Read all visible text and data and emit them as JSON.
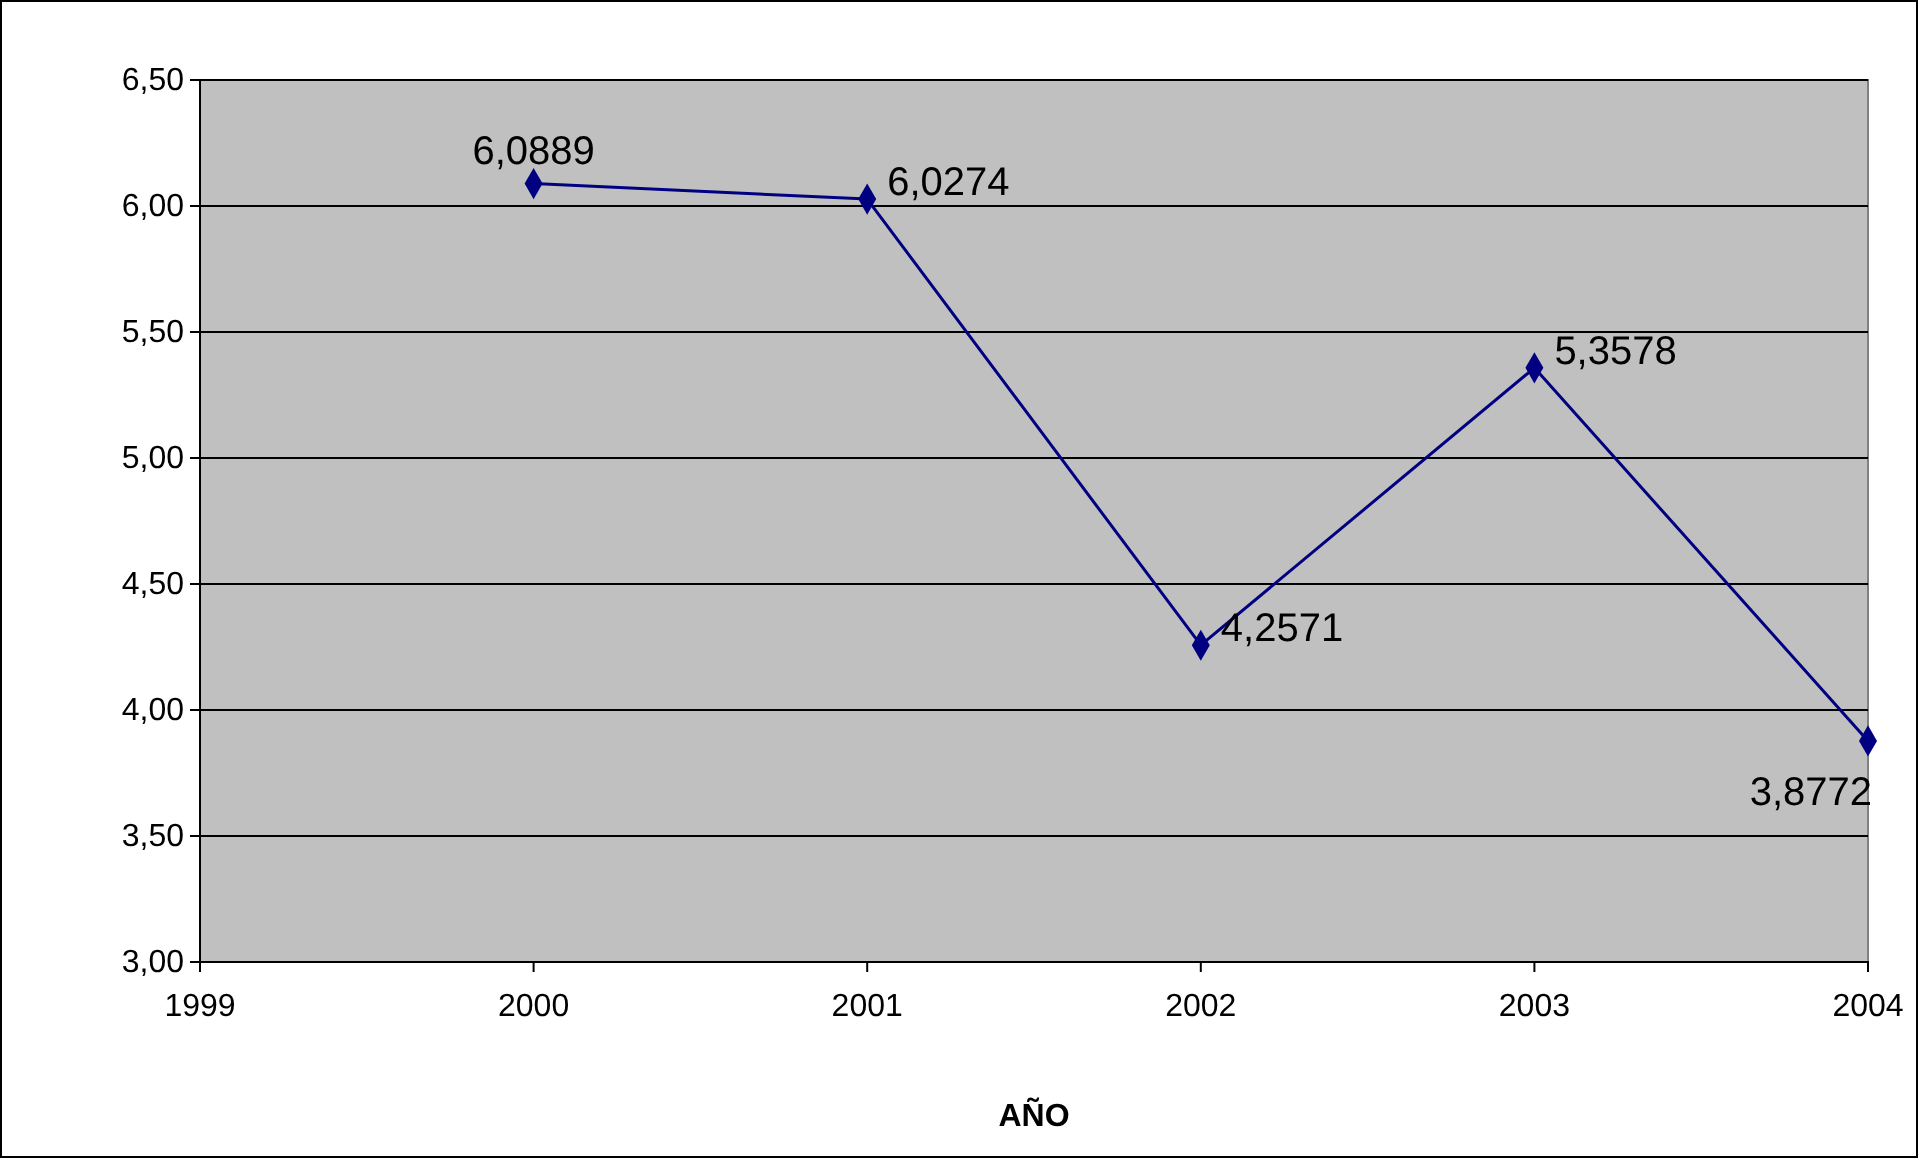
{
  "chart_data": {
    "type": "line",
    "xlabel": "AÑO",
    "x": [
      2000,
      2001,
      2002,
      2003,
      2004
    ],
    "series": [
      {
        "color": "#000080",
        "values": [
          6.0889,
          6.0274,
          4.2571,
          5.3578,
          3.8772
        ]
      }
    ],
    "value_labels": [
      "6,0889",
      "6,0274",
      "4,2571",
      "5,3578",
      "3,8772"
    ],
    "xlim": [
      1999,
      2004
    ],
    "xticks": [
      1999,
      2000,
      2001,
      2002,
      2003,
      2004
    ],
    "ylim": [
      3,
      6.5
    ],
    "yticks": [
      {
        "value": 3,
        "label": "3,00"
      },
      {
        "value": 3.5,
        "label": "3,50"
      },
      {
        "value": 4,
        "label": "4,00"
      },
      {
        "value": 4.5,
        "label": "4,50"
      },
      {
        "value": 5,
        "label": "5,00"
      },
      {
        "value": 5.5,
        "label": "5,50"
      },
      {
        "value": 6,
        "label": "6,00"
      },
      {
        "value": 6.5,
        "label": "6,50"
      }
    ],
    "grid": "y",
    "marker": "diamond",
    "line_style": "solid"
  }
}
